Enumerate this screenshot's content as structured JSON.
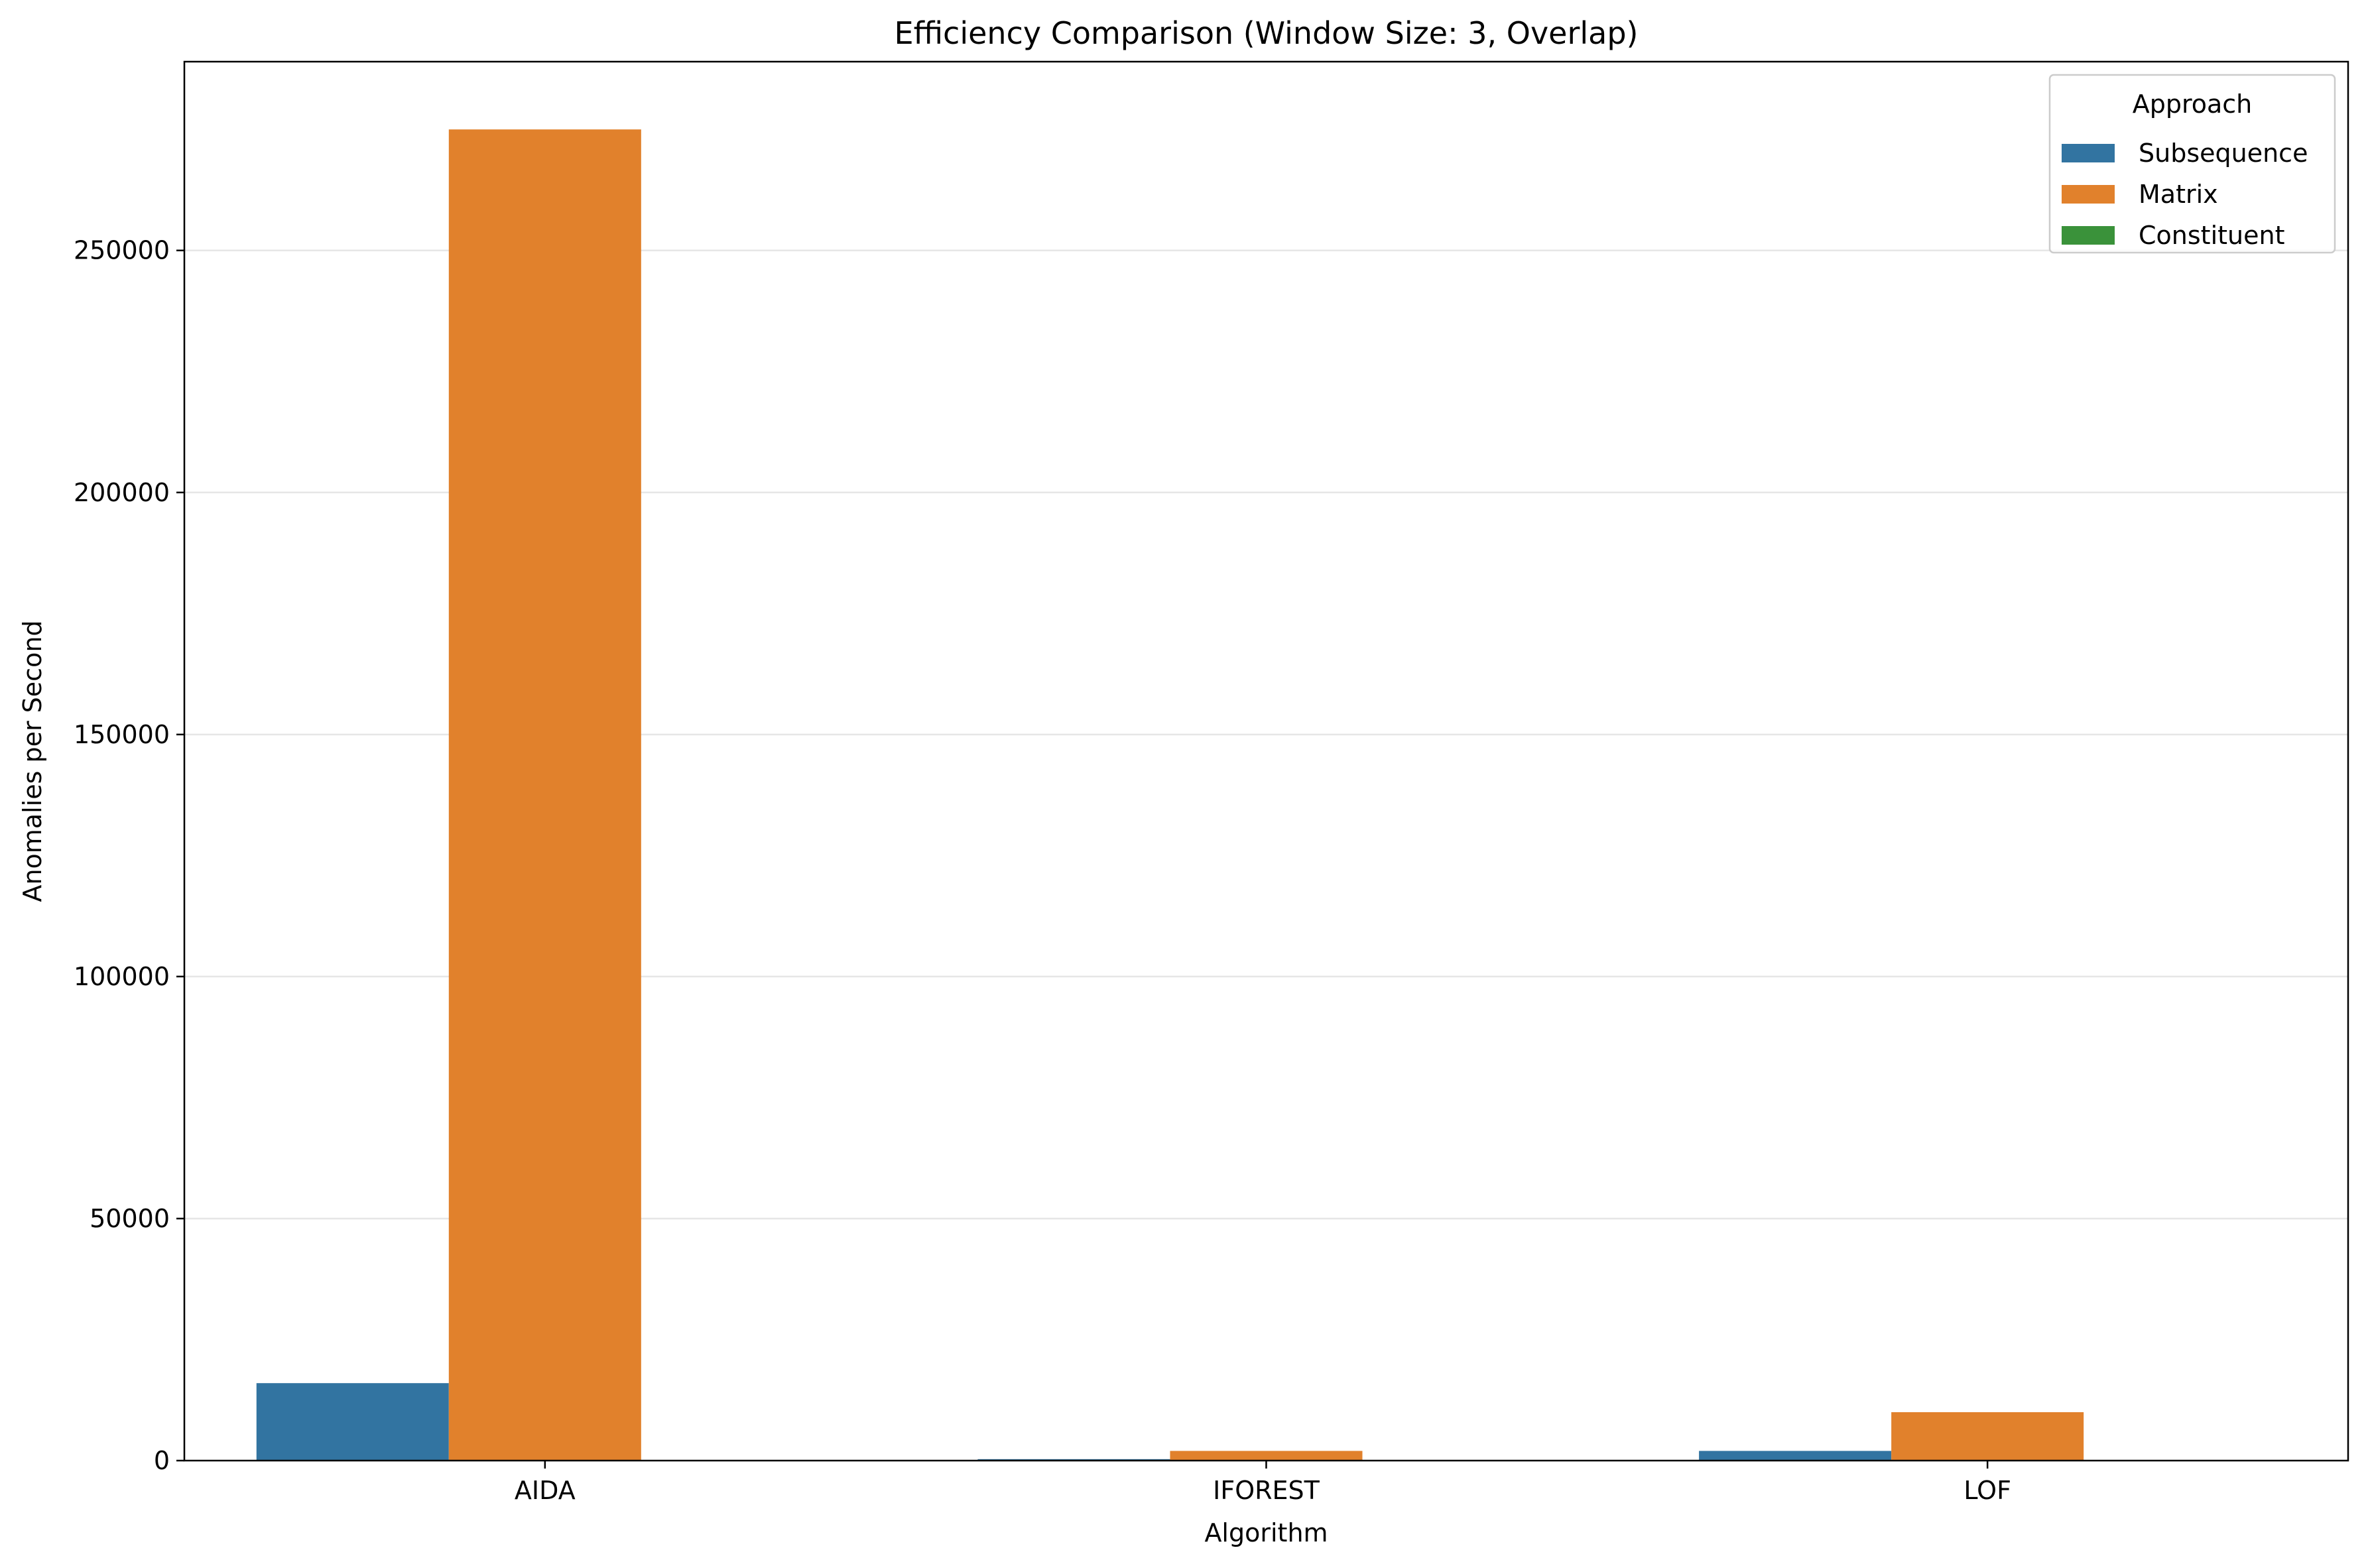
{
  "chart_data": {
    "type": "bar",
    "title": "Efficiency Comparison (Window Size: 3, Overlap)",
    "xlabel": "Algorithm",
    "ylabel": "Anomalies per Second",
    "categories": [
      "AIDA",
      "IFOREST",
      "LOF"
    ],
    "ylim": [
      0,
      289000
    ],
    "yticks": [
      0,
      50000,
      100000,
      150000,
      200000,
      250000
    ],
    "ytick_labels": [
      "0",
      "50000",
      "100000",
      "150000",
      "200000",
      "250000"
    ],
    "grid": "y",
    "legend": {
      "title": "Approach",
      "placement": "top-right"
    },
    "series": [
      {
        "name": "Subsequence",
        "color": "#3274a1",
        "values": [
          16000,
          300,
          2000
        ]
      },
      {
        "name": "Matrix",
        "color": "#e1812c",
        "values": [
          275000,
          2000,
          10000
        ]
      },
      {
        "name": "Constituent",
        "color": "#3a923a",
        "values": [
          0,
          0,
          0
        ]
      }
    ]
  }
}
